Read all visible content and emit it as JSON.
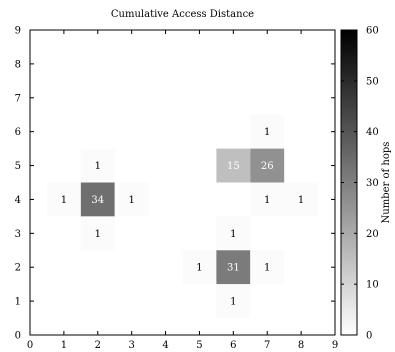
{
  "chart_data": {
    "type": "heatmap",
    "title": "Cumulative Access Distance",
    "xlabel": "",
    "ylabel": "",
    "xlim": [
      0,
      9
    ],
    "ylim": [
      0,
      9
    ],
    "xticks": [
      0,
      1,
      2,
      3,
      4,
      5,
      6,
      7,
      8,
      9
    ],
    "yticks": [
      0,
      1,
      2,
      3,
      4,
      5,
      6,
      7,
      8,
      9
    ],
    "grid": false,
    "colorbar": {
      "label": "Number of hops",
      "min": 0,
      "max": 60,
      "ticks": [
        0,
        10,
        20,
        30,
        40,
        50,
        60
      ],
      "colormap": "gray_reversed",
      "low_color": "#ffffff",
      "high_color": "#000000"
    },
    "cells": [
      {
        "x": 7,
        "y": 6,
        "value": 1
      },
      {
        "x": 2,
        "y": 5,
        "value": 1
      },
      {
        "x": 6,
        "y": 5,
        "value": 15
      },
      {
        "x": 7,
        "y": 5,
        "value": 26
      },
      {
        "x": 1,
        "y": 4,
        "value": 1
      },
      {
        "x": 2,
        "y": 4,
        "value": 34
      },
      {
        "x": 3,
        "y": 4,
        "value": 1
      },
      {
        "x": 7,
        "y": 4,
        "value": 1
      },
      {
        "x": 8,
        "y": 4,
        "value": 1
      },
      {
        "x": 2,
        "y": 3,
        "value": 1
      },
      {
        "x": 6,
        "y": 3,
        "value": 1
      },
      {
        "x": 5,
        "y": 2,
        "value": 1
      },
      {
        "x": 6,
        "y": 2,
        "value": 31
      },
      {
        "x": 7,
        "y": 2,
        "value": 1
      },
      {
        "x": 6,
        "y": 1,
        "value": 1
      }
    ]
  }
}
